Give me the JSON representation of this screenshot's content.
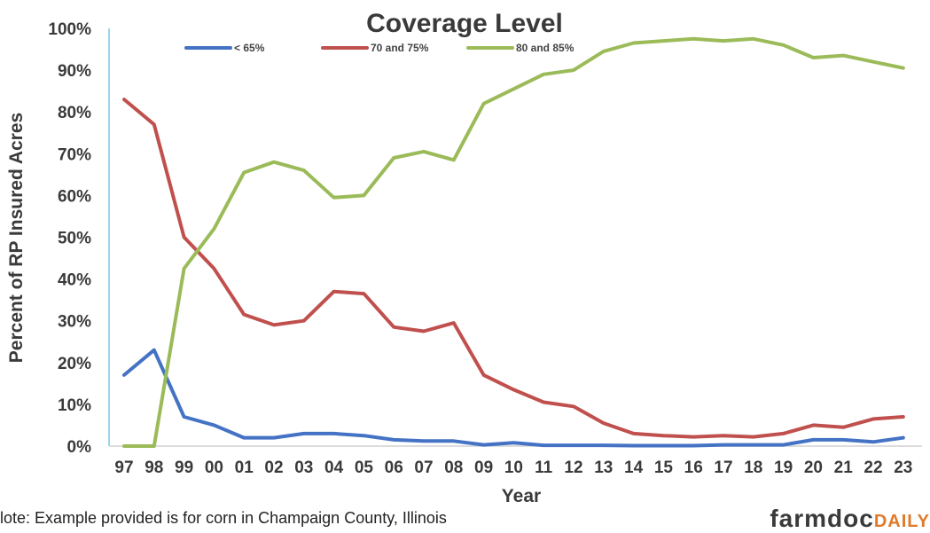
{
  "chart_data": {
    "type": "line",
    "title": "Coverage Level",
    "xlabel": "Year",
    "ylabel": "Percent of RP Insured Acres",
    "categories": [
      "97",
      "98",
      "99",
      "00",
      "01",
      "02",
      "03",
      "04",
      "05",
      "06",
      "07",
      "08",
      "09",
      "10",
      "11",
      "12",
      "13",
      "14",
      "15",
      "16",
      "17",
      "18",
      "19",
      "20",
      "21",
      "22",
      "23"
    ],
    "yticks": [
      "0%",
      "10%",
      "20%",
      "30%",
      "40%",
      "50%",
      "60%",
      "70%",
      "80%",
      "90%",
      "100%"
    ],
    "ylim": [
      0,
      100
    ],
    "grid": false,
    "legend": "top",
    "series": [
      {
        "name": "< 65%",
        "color": "#4472c4",
        "values": [
          17,
          23,
          7,
          5,
          2,
          2,
          3,
          3,
          2.5,
          1.5,
          1.2,
          1.2,
          0.3,
          0.8,
          0.2,
          0.2,
          0.2,
          0.1,
          0.1,
          0.1,
          0.3,
          0.3,
          0.3,
          1.5,
          1.5,
          1,
          2
        ]
      },
      {
        "name": "70 and 75%",
        "color": "#c0504d",
        "values": [
          83,
          77,
          50,
          42.5,
          31.5,
          29,
          30,
          37,
          36.5,
          28.5,
          27.5,
          29.5,
          17,
          13.5,
          10.5,
          9.5,
          5.5,
          3,
          2.5,
          2.2,
          2.5,
          2.2,
          3,
          5,
          4.5,
          6.5,
          7
        ]
      },
      {
        "name": "80 and 85%",
        "color": "#9bbb59",
        "values": [
          0,
          0,
          42.5,
          52,
          65.5,
          68,
          66,
          59.5,
          60,
          69,
          70.5,
          68.5,
          82,
          85.5,
          89,
          90,
          94.5,
          96.5,
          97,
          97.5,
          97,
          97.5,
          96,
          93,
          93.5,
          92,
          90.5
        ]
      }
    ]
  },
  "note": "lote: Example provided is for corn in Champaign County, Illinois",
  "logo": {
    "main": "farmdoc",
    "accent": "DAILY"
  }
}
